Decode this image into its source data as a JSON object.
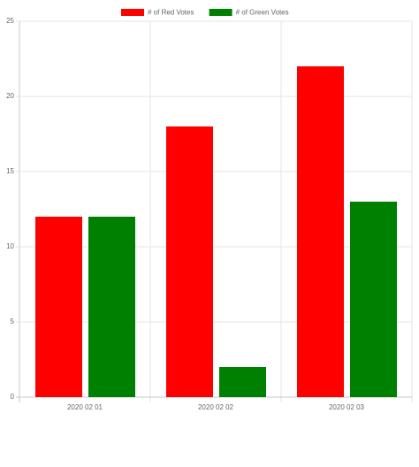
{
  "chart_data": {
    "type": "bar",
    "categories": [
      "2020 02 01",
      "2020 02 02",
      "2020 02 03"
    ],
    "series": [
      {
        "name": "# of Red Votes",
        "color": "#ff0000",
        "values": [
          12,
          18,
          22
        ]
      },
      {
        "name": "# of Green Votes",
        "color": "#008000",
        "values": [
          12,
          2,
          13
        ]
      }
    ],
    "ylim": [
      0,
      25
    ],
    "yticks": [
      0,
      5,
      10,
      15,
      20,
      25
    ],
    "grid": true,
    "legend": "top"
  }
}
